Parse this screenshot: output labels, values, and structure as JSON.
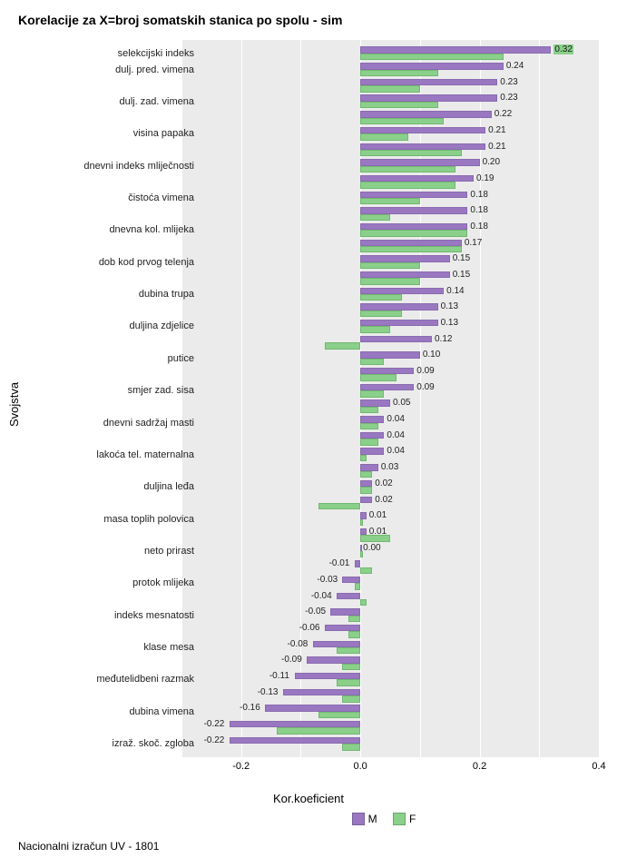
{
  "title": "Korelacije za X=broj somatskih stanica po spolu - sim",
  "ylabel": "Svojstva",
  "xlabel": "Kor.koeficient",
  "footer": "Nacionalni izračun UV - 1801",
  "legend": {
    "m": "M",
    "f": "F"
  },
  "chart": {
    "type": "grouped-horizontal-bar",
    "xlim": [
      -0.3,
      0.4
    ],
    "xticks": [
      -0.2,
      0.0,
      0.2,
      0.4
    ],
    "xtick_labels": [
      "-0.2",
      "0.0",
      "0.2",
      "0.4"
    ],
    "plot_bg": "#ebebeb",
    "grid_color": "#ffffff",
    "colors": {
      "M": "#9978c1",
      "F": "#8ad08a"
    },
    "font_size_axis": 11,
    "font_size_value": 10,
    "highlight_threshold": 0.3
  },
  "categories": [
    {
      "label": "selekcijski indeks",
      "M": 0.32,
      "F": 0.24
    },
    {
      "label": "dulj. pred. vimena",
      "M": 0.24,
      "F": 0.13
    },
    {
      "label": "",
      "M": 0.23,
      "F": 0.1
    },
    {
      "label": "dulj. zad. vimena",
      "M": 0.23,
      "F": 0.13
    },
    {
      "label": "",
      "M": 0.22,
      "F": 0.14
    },
    {
      "label": "visina papaka",
      "M": 0.21,
      "F": 0.08
    },
    {
      "label": "",
      "M": 0.21,
      "F": 0.17
    },
    {
      "label": "dnevni indeks mliječnosti",
      "M": 0.2,
      "F": 0.16
    },
    {
      "label": "",
      "M": 0.19,
      "F": 0.16
    },
    {
      "label": "čistoća vimena",
      "M": 0.18,
      "F": 0.1
    },
    {
      "label": "",
      "M": 0.18,
      "F": 0.05
    },
    {
      "label": "dnevna kol. mlijeka",
      "M": 0.18,
      "F": 0.18
    },
    {
      "label": "",
      "M": 0.17,
      "F": 0.17
    },
    {
      "label": "dob kod prvog telenja",
      "M": 0.15,
      "F": 0.1
    },
    {
      "label": "",
      "M": 0.15,
      "F": 0.1
    },
    {
      "label": "dubina trupa",
      "M": 0.14,
      "F": 0.07
    },
    {
      "label": "",
      "M": 0.13,
      "F": 0.07
    },
    {
      "label": "duljina zdjelice",
      "M": 0.13,
      "F": 0.05
    },
    {
      "label": "",
      "M": 0.12,
      "F": -0.06
    },
    {
      "label": "putice",
      "M": 0.1,
      "F": 0.04
    },
    {
      "label": "",
      "M": 0.09,
      "F": 0.06
    },
    {
      "label": "smjer zad. sisa",
      "M": 0.09,
      "F": 0.04
    },
    {
      "label": "",
      "M": 0.05,
      "F": 0.03
    },
    {
      "label": "dnevni sadržaj masti",
      "M": 0.04,
      "F": 0.03
    },
    {
      "label": "",
      "M": 0.04,
      "F": 0.03
    },
    {
      "label": "lakoća tel. maternalna",
      "M": 0.04,
      "F": 0.01
    },
    {
      "label": "",
      "M": 0.03,
      "F": 0.02
    },
    {
      "label": "duljina leđa",
      "M": 0.02,
      "F": 0.02
    },
    {
      "label": "",
      "M": 0.02,
      "F": -0.07
    },
    {
      "label": "masa toplih polovica",
      "M": 0.01,
      "F": 0.005
    },
    {
      "label": "",
      "M": 0.01,
      "F": 0.05
    },
    {
      "label": "neto prirast",
      "M": 0.0,
      "F": 0.005
    },
    {
      "label": "",
      "M": -0.01,
      "F": 0.02
    },
    {
      "label": "protok mlijeka",
      "M": -0.03,
      "F": -0.01
    },
    {
      "label": "",
      "M": -0.04,
      "F": 0.01
    },
    {
      "label": "indeks mesnatosti",
      "M": -0.05,
      "F": -0.02
    },
    {
      "label": "",
      "M": -0.06,
      "F": -0.02
    },
    {
      "label": "klase mesa",
      "M": -0.08,
      "F": -0.04
    },
    {
      "label": "",
      "M": -0.09,
      "F": -0.03
    },
    {
      "label": "međutelidbeni razmak",
      "M": -0.11,
      "F": -0.04
    },
    {
      "label": "",
      "M": -0.13,
      "F": -0.03
    },
    {
      "label": "dubina vimena",
      "M": -0.16,
      "F": -0.07
    },
    {
      "label": "",
      "M": -0.22,
      "F": -0.14
    },
    {
      "label": "izraž. skoč. zgloba",
      "M": -0.22,
      "F": -0.03
    }
  ]
}
